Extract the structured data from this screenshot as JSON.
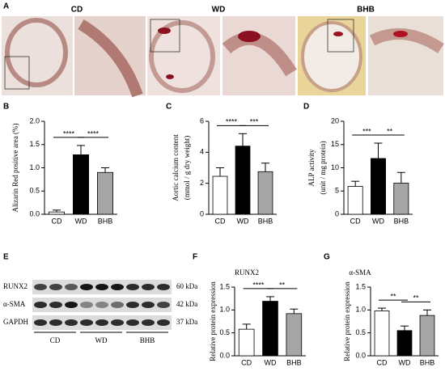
{
  "panel_a": {
    "label": "A",
    "groups": [
      "CD",
      "WD",
      "BHB"
    ]
  },
  "chart_data": [
    {
      "type": "bar",
      "label": "B",
      "ylabel": [
        "Alizarin Red positive area (%)"
      ],
      "categories": [
        "CD",
        "WD",
        "BHB"
      ],
      "values": [
        0.05,
        1.28,
        0.9
      ],
      "errors": [
        0.04,
        0.2,
        0.1
      ],
      "colors": [
        "#ffffff",
        "#000000",
        "#a6a6a6"
      ],
      "ylim": [
        0,
        2
      ],
      "yticks": [
        {
          "value": 0,
          "label": "0.0"
        },
        0.5,
        {
          "value": 1,
          "label": "1.0"
        },
        1.5,
        {
          "value": 2,
          "label": "2.0"
        }
      ],
      "significance": [
        "****",
        "****"
      ]
    },
    {
      "type": "bar",
      "label": "C",
      "ylabel": [
        "Aortic calcium content",
        "(mmol / g dry weight)"
      ],
      "categories": [
        "CD",
        "WD",
        "BHB"
      ],
      "values": [
        2.45,
        4.4,
        2.75
      ],
      "errors": [
        0.55,
        0.8,
        0.55
      ],
      "colors": [
        "#ffffff",
        "#000000",
        "#a6a6a6"
      ],
      "ylim": [
        0,
        6
      ],
      "yticks": [
        0,
        2,
        4,
        6
      ],
      "significance": [
        "****",
        "***"
      ]
    },
    {
      "type": "bar",
      "label": "D",
      "ylabel": [
        "ALP activity",
        "(unit / mg protein)"
      ],
      "categories": [
        "CD",
        "WD",
        "BHB"
      ],
      "values": [
        6,
        12,
        6.7
      ],
      "errors": [
        1.1,
        3.3,
        2.3
      ],
      "colors": [
        "#ffffff",
        "#000000",
        "#a6a6a6"
      ],
      "ylim": [
        0,
        20
      ],
      "yticks": [
        0,
        5,
        10,
        15,
        20
      ],
      "significance": [
        "***",
        "**"
      ]
    },
    {
      "type": "bar",
      "label": "F",
      "title": "RUNX2",
      "ylabel": [
        "Relative protein expression"
      ],
      "categories": [
        "CD",
        "WD",
        "BHB"
      ],
      "values": [
        0.58,
        1.19,
        0.92
      ],
      "errors": [
        0.11,
        0.1,
        0.1
      ],
      "colors": [
        "#ffffff",
        "#000000",
        "#a6a6a6"
      ],
      "ylim": [
        0,
        1.5
      ],
      "yticks": [
        {
          "value": 0,
          "label": "0.0"
        },
        0.5,
        {
          "value": 1,
          "label": "1.0"
        },
        1.5
      ],
      "significance": [
        "****",
        "**"
      ]
    },
    {
      "type": "bar",
      "label": "G",
      "title": "α-SMA",
      "ylabel": [
        "Relative protein expression"
      ],
      "categories": [
        "CD",
        "WD",
        "BHB"
      ],
      "values": [
        0.98,
        0.55,
        0.88
      ],
      "errors": [
        0.06,
        0.1,
        0.12
      ],
      "colors": [
        "#ffffff",
        "#000000",
        "#a6a6a6"
      ],
      "ylim": [
        0,
        1.5
      ],
      "yticks": [
        {
          "value": 0,
          "label": "0.0"
        },
        0.5,
        {
          "value": 1,
          "label": "1.0"
        },
        1.5
      ],
      "significance": [
        "**",
        "**"
      ]
    }
  ],
  "panel_e": {
    "label": "E",
    "rows": [
      {
        "protein": "RUNX2",
        "size": "60 kDa"
      },
      {
        "protein": "α-SMA",
        "size": "42 kDa"
      },
      {
        "protein": "GAPDH",
        "size": "37 kDa"
      }
    ],
    "groups": [
      "CD",
      "WD",
      "BHB"
    ]
  }
}
